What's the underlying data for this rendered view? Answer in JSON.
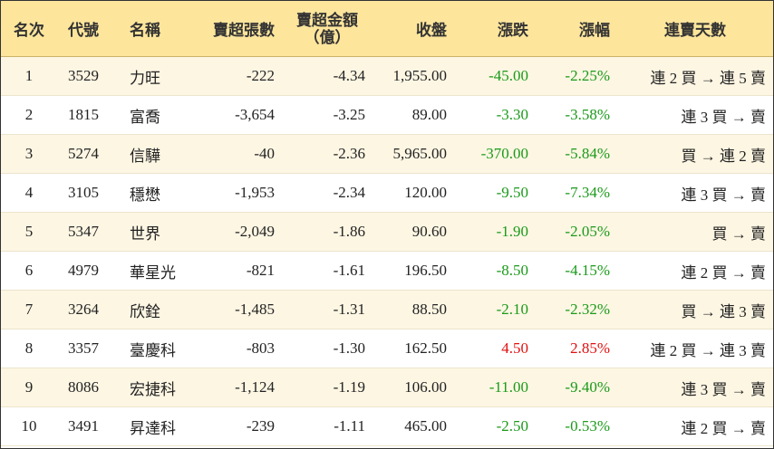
{
  "table": {
    "headers": [
      "名次",
      "代號",
      "名稱",
      "賣超張數",
      "賣超金額（億）",
      "收盤",
      "漲跌",
      "漲幅",
      "連賣天數"
    ],
    "rows": [
      [
        "1",
        "3529",
        "力旺",
        "-222",
        "-4.34",
        "1,955.00",
        "-45.00",
        "-2.25%",
        "連 2 買 → 連 5 賣"
      ],
      [
        "2",
        "1815",
        "富喬",
        "-3,654",
        "-3.25",
        "89.00",
        "-3.30",
        "-3.58%",
        "連 3 買 → 賣"
      ],
      [
        "3",
        "5274",
        "信驊",
        "-40",
        "-2.36",
        "5,965.00",
        "-370.00",
        "-5.84%",
        "買 → 連 2 賣"
      ],
      [
        "4",
        "3105",
        "穩懋",
        "-1,953",
        "-2.34",
        "120.00",
        "-9.50",
        "-7.34%",
        "連 3 買 → 賣"
      ],
      [
        "5",
        "5347",
        "世界",
        "-2,049",
        "-1.86",
        "90.60",
        "-1.90",
        "-2.05%",
        "買 → 賣"
      ],
      [
        "6",
        "4979",
        "華星光",
        "-821",
        "-1.61",
        "196.50",
        "-8.50",
        "-4.15%",
        "連 2 買 → 賣"
      ],
      [
        "7",
        "3264",
        "欣銓",
        "-1,485",
        "-1.31",
        "88.50",
        "-2.10",
        "-2.32%",
        "買 → 連 3 賣"
      ],
      [
        "8",
        "3357",
        "臺慶科",
        "-803",
        "-1.30",
        "162.50",
        "4.50",
        "2.85%",
        "連 2 買 → 連 3 賣"
      ],
      [
        "9",
        "8086",
        "宏捷科",
        "-1,124",
        "-1.19",
        "106.00",
        "-11.00",
        "-9.40%",
        "連 3 買 → 賣"
      ],
      [
        "10",
        "3491",
        "昇達科",
        "-239",
        "-1.11",
        "465.00",
        "-2.50",
        "-0.53%",
        "連 2 買 → 賣"
      ]
    ]
  }
}
